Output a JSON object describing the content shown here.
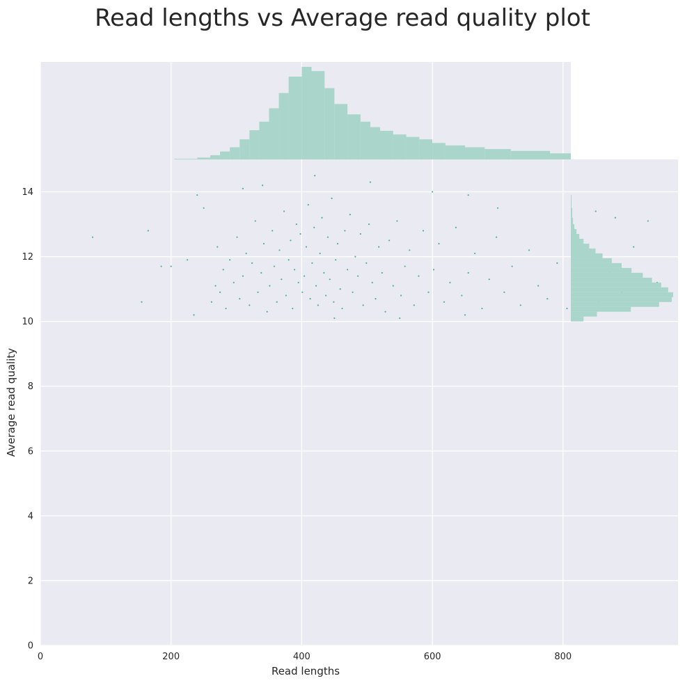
{
  "chart_data": {
    "type": "scatter",
    "title": "Read lengths vs Average read quality plot",
    "xlabel": "Read lengths",
    "ylabel": "Average read quality",
    "xlim": [
      0,
      976
    ],
    "ylim": [
      0,
      15
    ],
    "xticks": [
      0,
      200,
      400,
      600,
      800
    ],
    "yticks": [
      0,
      2,
      4,
      6,
      8,
      10,
      12,
      14
    ],
    "grid": true,
    "colors": {
      "background": "#eaeaf2",
      "grid": "#ffffff",
      "points": "#4bb291",
      "histogram": "#a9d5cb"
    },
    "marginal_x": {
      "bin_starts": [
        205,
        240,
        260,
        275,
        290,
        305,
        320,
        335,
        350,
        365,
        380,
        400,
        415,
        435,
        450,
        470,
        490,
        505,
        520,
        540,
        560,
        580,
        600,
        620,
        650,
        680,
        720,
        780,
        850,
        900,
        950
      ],
      "bin_ends": [
        240,
        260,
        275,
        290,
        305,
        320,
        335,
        350,
        365,
        380,
        400,
        415,
        435,
        450,
        470,
        490,
        505,
        520,
        540,
        560,
        580,
        600,
        620,
        650,
        680,
        720,
        780,
        850,
        900,
        950,
        976
      ],
      "counts": [
        1,
        3,
        7,
        13,
        20,
        33,
        48,
        62,
        84,
        109,
        136,
        152,
        145,
        117,
        91,
        74,
        62,
        53,
        47,
        41,
        37,
        33,
        27,
        23,
        20,
        17,
        14,
        10,
        7,
        5,
        3
      ]
    },
    "marginal_y": {
      "bin_starts": [
        10.0,
        10.15,
        10.3,
        10.45,
        10.6,
        10.75,
        10.9,
        11.05,
        11.2,
        11.35,
        11.5,
        11.65,
        11.8,
        11.95,
        12.1,
        12.25,
        12.4,
        12.55,
        12.7,
        12.85,
        13.0,
        13.2,
        13.5
      ],
      "bin_ends": [
        10.15,
        10.3,
        10.45,
        10.6,
        10.75,
        10.9,
        11.05,
        11.2,
        11.35,
        11.5,
        11.65,
        11.8,
        11.95,
        12.1,
        12.25,
        12.4,
        12.55,
        12.7,
        12.85,
        13.0,
        13.2,
        13.5,
        13.9
      ],
      "counts": [
        18,
        37,
        85,
        125,
        143,
        145,
        138,
        128,
        115,
        102,
        86,
        72,
        58,
        45,
        35,
        26,
        18,
        12,
        8,
        5,
        3,
        2,
        1
      ]
    },
    "points": [
      [
        262,
        10.6
      ],
      [
        268,
        11.1
      ],
      [
        271,
        12.3
      ],
      [
        275,
        10.9
      ],
      [
        280,
        11.6
      ],
      [
        284,
        10.4
      ],
      [
        290,
        11.9
      ],
      [
        296,
        11.2
      ],
      [
        301,
        12.6
      ],
      [
        305,
        10.7
      ],
      [
        310,
        11.4
      ],
      [
        315,
        12.1
      ],
      [
        320,
        10.5
      ],
      [
        324,
        11.8
      ],
      [
        329,
        13.1
      ],
      [
        333,
        10.9
      ],
      [
        338,
        11.5
      ],
      [
        342,
        12.4
      ],
      [
        347,
        10.3
      ],
      [
        351,
        11.1
      ],
      [
        355,
        12.8
      ],
      [
        358,
        11.7
      ],
      [
        362,
        10.6
      ],
      [
        366,
        12.2
      ],
      [
        369,
        11.3
      ],
      [
        373,
        13.4
      ],
      [
        376,
        10.8
      ],
      [
        380,
        11.9
      ],
      [
        383,
        12.5
      ],
      [
        386,
        10.4
      ],
      [
        389,
        11.6
      ],
      [
        392,
        13.0
      ],
      [
        395,
        11.2
      ],
      [
        398,
        12.7
      ],
      [
        401,
        10.9
      ],
      [
        404,
        11.4
      ],
      [
        407,
        12.3
      ],
      [
        410,
        13.6
      ],
      [
        413,
        10.7
      ],
      [
        416,
        11.8
      ],
      [
        419,
        12.9
      ],
      [
        422,
        11.1
      ],
      [
        425,
        10.5
      ],
      [
        428,
        12.1
      ],
      [
        431,
        13.2
      ],
      [
        434,
        11.5
      ],
      [
        437,
        10.8
      ],
      [
        440,
        12.6
      ],
      [
        443,
        11.3
      ],
      [
        446,
        13.8
      ],
      [
        449,
        10.6
      ],
      [
        452,
        11.9
      ],
      [
        455,
        12.4
      ],
      [
        459,
        11.0
      ],
      [
        462,
        10.4
      ],
      [
        466,
        12.8
      ],
      [
        470,
        11.6
      ],
      [
        474,
        13.3
      ],
      [
        478,
        10.9
      ],
      [
        482,
        12.0
      ],
      [
        486,
        11.4
      ],
      [
        490,
        12.7
      ],
      [
        494,
        10.5
      ],
      [
        499,
        11.8
      ],
      [
        503,
        13.0
      ],
      [
        508,
        11.2
      ],
      [
        513,
        10.7
      ],
      [
        518,
        12.3
      ],
      [
        523,
        11.5
      ],
      [
        528,
        10.3
      ],
      [
        534,
        12.5
      ],
      [
        540,
        11.1
      ],
      [
        546,
        13.1
      ],
      [
        552,
        10.8
      ],
      [
        558,
        11.7
      ],
      [
        565,
        12.2
      ],
      [
        572,
        10.5
      ],
      [
        579,
        11.4
      ],
      [
        586,
        12.8
      ],
      [
        594,
        10.9
      ],
      [
        602,
        11.6
      ],
      [
        610,
        12.4
      ],
      [
        618,
        10.6
      ],
      [
        627,
        11.2
      ],
      [
        636,
        12.9
      ],
      [
        645,
        10.8
      ],
      [
        655,
        11.5
      ],
      [
        665,
        12.1
      ],
      [
        676,
        10.4
      ],
      [
        687,
        11.3
      ],
      [
        698,
        12.6
      ],
      [
        710,
        10.9
      ],
      [
        722,
        11.7
      ],
      [
        735,
        10.5
      ],
      [
        748,
        12.2
      ],
      [
        762,
        11.1
      ],
      [
        776,
        10.7
      ],
      [
        791,
        11.8
      ],
      [
        806,
        10.4
      ],
      [
        822,
        12.0
      ],
      [
        838,
        11.3
      ],
      [
        855,
        10.6
      ],
      [
        872,
        11.5
      ],
      [
        890,
        10.9
      ],
      [
        908,
        12.3
      ],
      [
        926,
        10.5
      ],
      [
        944,
        11.2
      ],
      [
        962,
        10.8
      ],
      [
        420,
        14.5
      ],
      [
        505,
        14.3
      ],
      [
        310,
        14.1
      ],
      [
        600,
        14.0
      ],
      [
        655,
        13.9
      ],
      [
        240,
        13.9
      ],
      [
        80,
        12.6
      ],
      [
        165,
        12.8
      ],
      [
        185,
        11.7
      ],
      [
        200,
        11.7
      ],
      [
        155,
        10.6
      ],
      [
        225,
        11.9
      ],
      [
        235,
        10.2
      ],
      [
        250,
        13.5
      ],
      [
        340,
        14.2
      ],
      [
        700,
        13.5
      ],
      [
        850,
        13.4
      ],
      [
        880,
        13.2
      ],
      [
        930,
        13.1
      ],
      [
        450,
        10.1
      ],
      [
        550,
        10.1
      ],
      [
        650,
        10.2
      ]
    ]
  }
}
